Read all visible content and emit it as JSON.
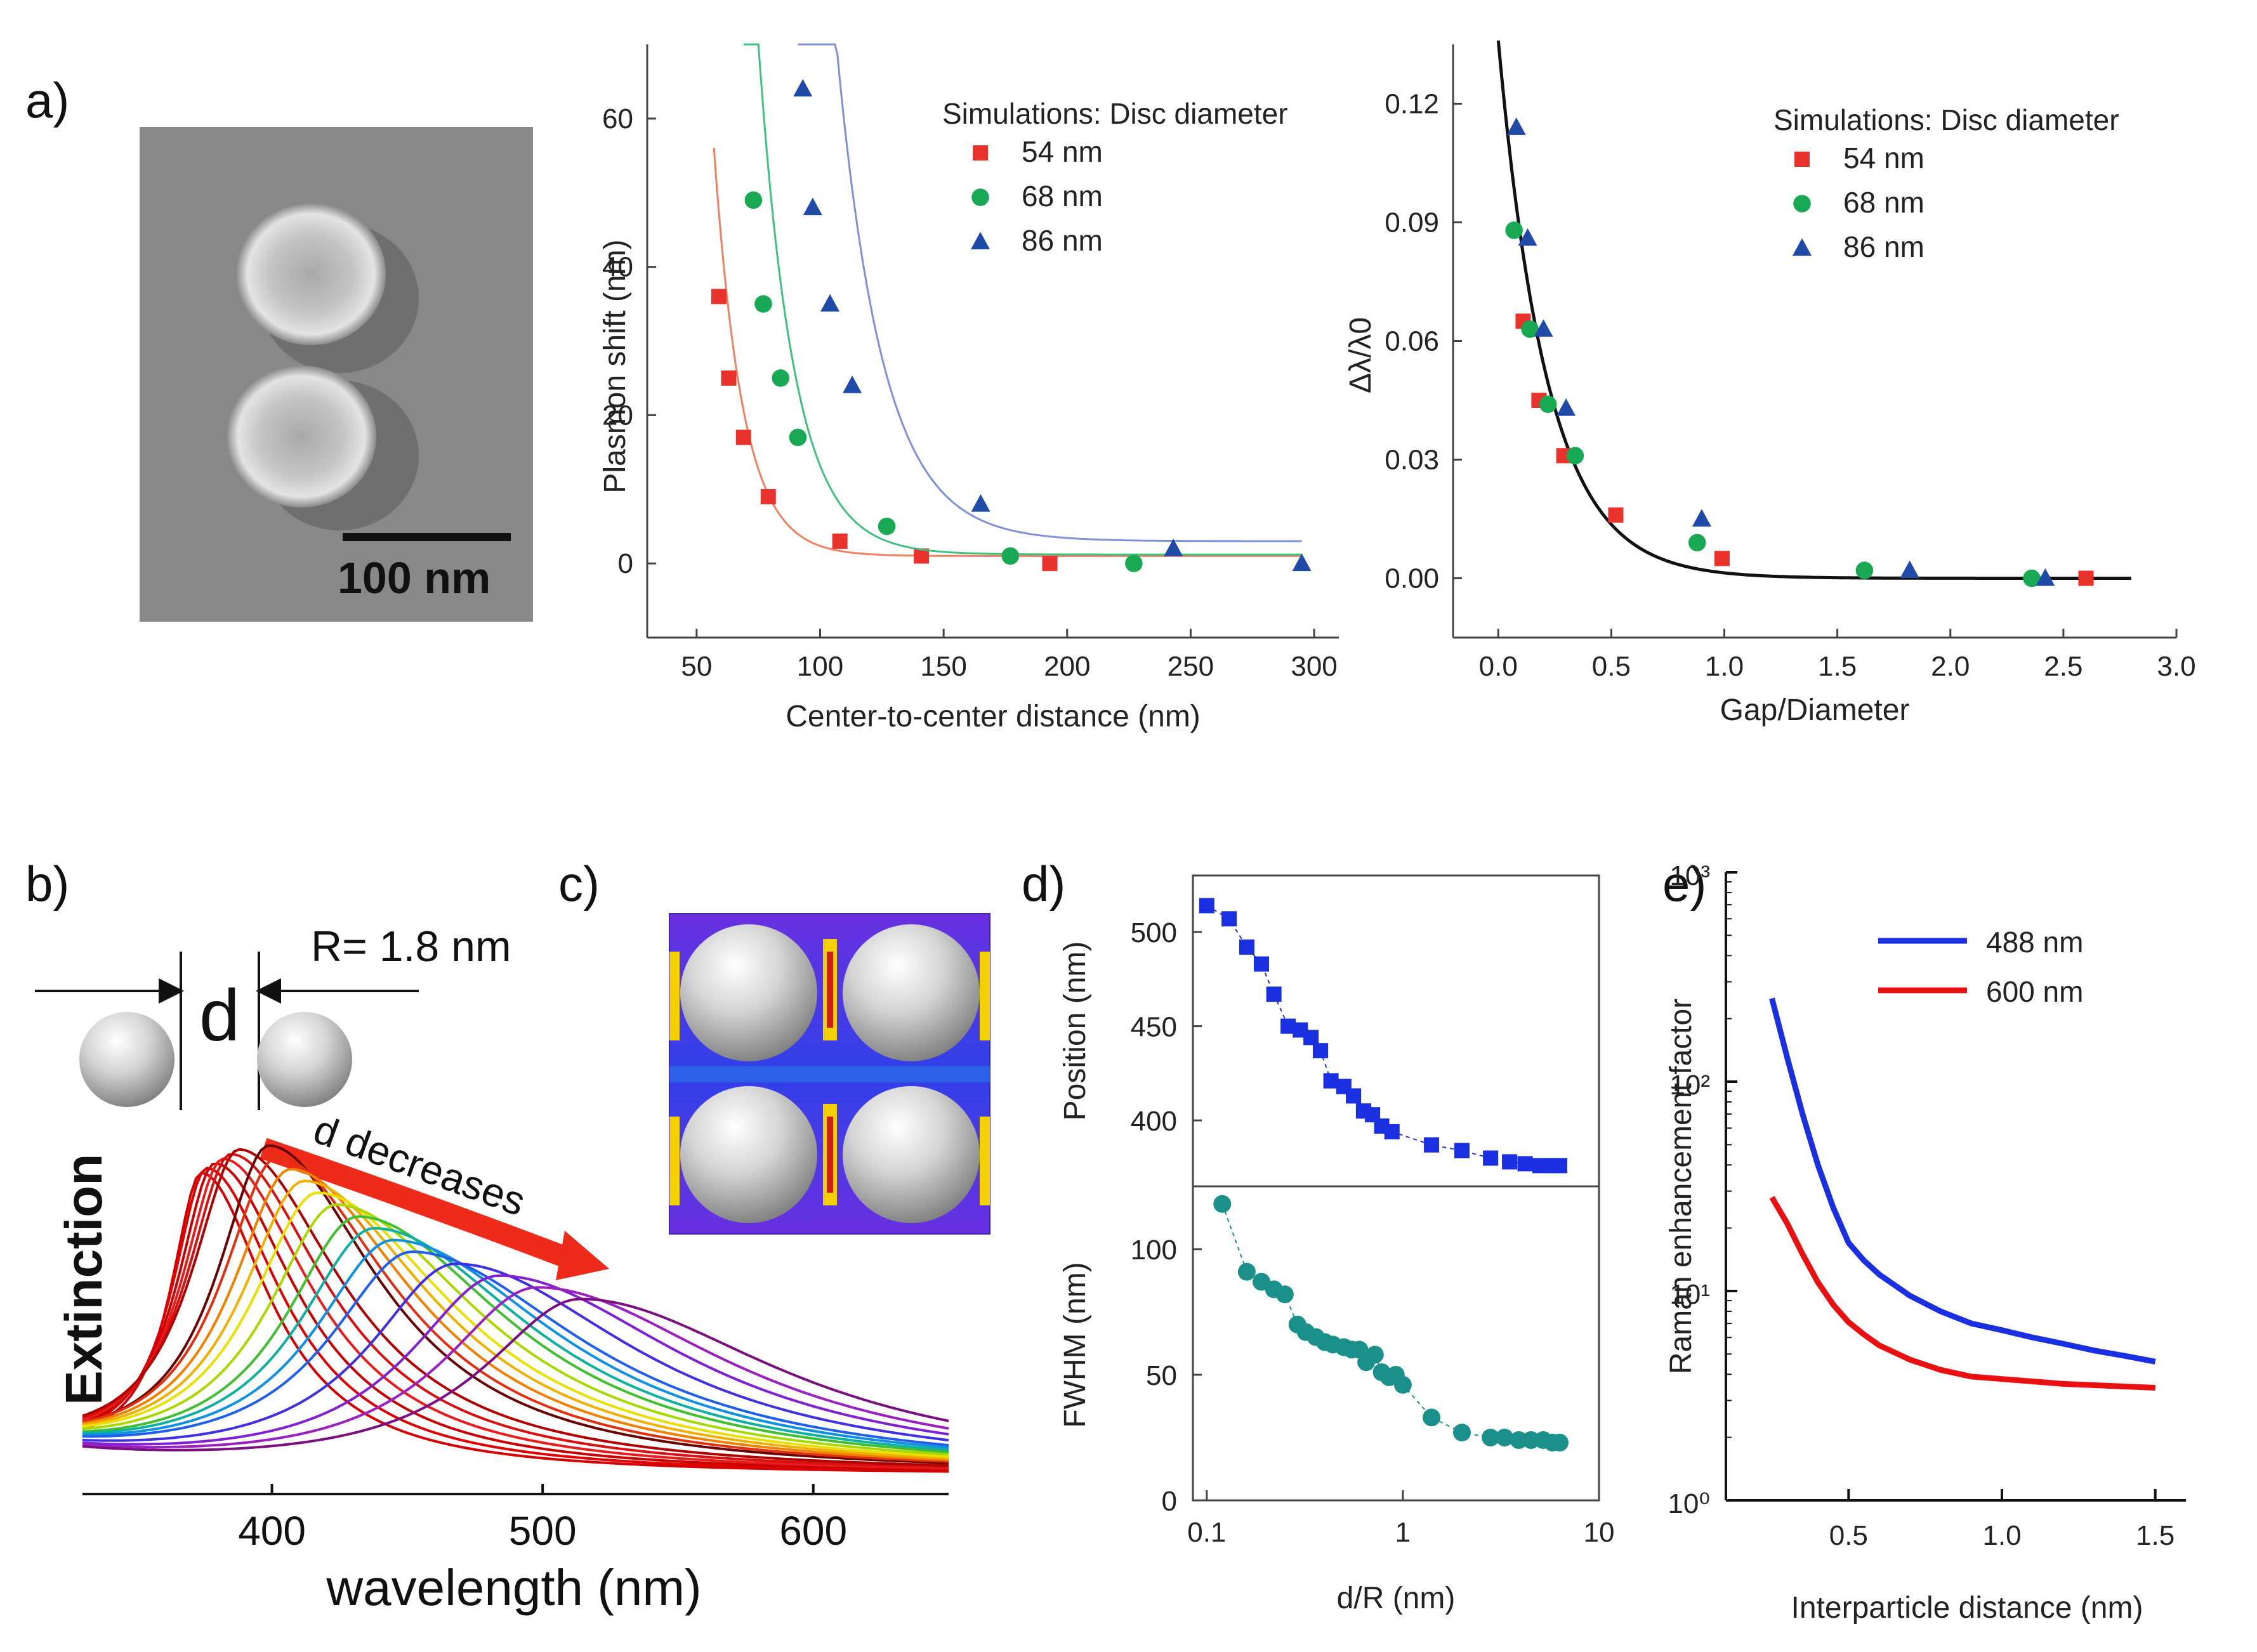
{
  "panels": {
    "a": "a)",
    "b": "b)",
    "c": "c)",
    "d": "d)",
    "e": "e)"
  },
  "colors": {
    "red": "#e8322b",
    "green": "#19a955",
    "blue": "#1f4aa8",
    "teal": "#1b8f8a",
    "royal": "#1a2fe0"
  },
  "sem": {
    "scale_label": "100 nm"
  },
  "panel_b": {
    "r_label": "R= 1.8 nm",
    "d_label": "d",
    "arrow_label": "d decreases"
  },
  "chart_data": [
    {
      "id": "a1",
      "type": "scatter",
      "title": "",
      "xlabel": "Center-to-center distance (nm)",
      "ylabel": "Plasmon shift (nm)",
      "xlim": [
        30,
        310
      ],
      "ylim": [
        -10,
        70
      ],
      "xticks": [
        50,
        100,
        150,
        200,
        250,
        300
      ],
      "yticks": [
        0,
        20,
        40,
        60
      ],
      "legend_title": "Simulations: Disc diameter",
      "series": [
        {
          "name": "54 nm",
          "marker": "square",
          "color": "#e8322b",
          "points": [
            [
              59,
              36
            ],
            [
              63,
              25
            ],
            [
              69,
              17
            ],
            [
              79,
              9
            ],
            [
              108,
              3
            ],
            [
              141,
              1
            ],
            [
              193,
              0
            ]
          ],
          "fit": {
            "a": 200,
            "x0": 58,
            "k": 0.086,
            "c": 1
          }
        },
        {
          "name": "68 nm",
          "marker": "circle",
          "color": "#19a955",
          "points": [
            [
              73,
              49
            ],
            [
              77,
              35
            ],
            [
              84,
              25
            ],
            [
              91,
              17
            ],
            [
              127,
              5
            ],
            [
              177,
              1
            ],
            [
              227,
              0
            ]
          ],
          "fit": {
            "a": 300,
            "x0": 70,
            "k": 0.07,
            "c": 1.2
          }
        },
        {
          "name": "86 nm",
          "marker": "triangle",
          "color": "#1f4aa8",
          "points": [
            [
              93,
              64
            ],
            [
              97,
              48
            ],
            [
              104,
              35
            ],
            [
              113,
              24
            ],
            [
              165,
              8
            ],
            [
              243,
              2
            ],
            [
              295,
              0
            ]
          ],
          "fit": {
            "a": 350,
            "x0": 92,
            "k": 0.054,
            "c": 3
          }
        }
      ]
    },
    {
      "id": "a2",
      "type": "scatter",
      "title": "",
      "xlabel": "Gap/Diameter",
      "ylabel": "Δλ/λ0",
      "xlim": [
        -0.2,
        3.0
      ],
      "ylim": [
        -0.015,
        0.135
      ],
      "xticks": [
        0.0,
        0.5,
        1.0,
        1.5,
        2.0,
        2.5,
        3.0
      ],
      "yticks": [
        0.0,
        0.03,
        0.06,
        0.09,
        0.12
      ],
      "legend_title": "Simulations: Disc diameter",
      "fit": {
        "a": 0.136,
        "k": 4.6
      },
      "series": [
        {
          "name": "54 nm",
          "marker": "square",
          "color": "#e8322b",
          "points": [
            [
              0.11,
              0.065
            ],
            [
              0.18,
              0.045
            ],
            [
              0.29,
              0.031
            ],
            [
              0.52,
              0.016
            ],
            [
              0.99,
              0.005
            ],
            [
              2.6,
              0.0
            ]
          ]
        },
        {
          "name": "68 nm",
          "marker": "circle",
          "color": "#19a955",
          "points": [
            [
              0.07,
              0.088
            ],
            [
              0.14,
              0.063
            ],
            [
              0.22,
              0.044
            ],
            [
              0.34,
              0.031
            ],
            [
              0.88,
              0.009
            ],
            [
              1.62,
              0.002
            ],
            [
              2.36,
              0.0
            ]
          ]
        },
        {
          "name": "86 nm",
          "marker": "triangle",
          "color": "#1f4aa8",
          "points": [
            [
              0.08,
              0.114
            ],
            [
              0.13,
              0.086
            ],
            [
              0.2,
              0.063
            ],
            [
              0.3,
              0.043
            ],
            [
              0.9,
              0.015
            ],
            [
              1.82,
              0.002
            ],
            [
              2.42,
              0.0
            ]
          ]
        }
      ]
    },
    {
      "id": "b",
      "type": "line",
      "title": "",
      "xlabel": "wavelength (nm)",
      "ylabel": "Extinction",
      "xlim": [
        330,
        650
      ],
      "xticks": [
        400,
        500,
        600
      ],
      "series_peaks": [
        {
          "peak": 374,
          "color": "#d40000"
        },
        {
          "peak": 376,
          "color": "#e00000"
        },
        {
          "peak": 379,
          "color": "#c80000"
        },
        {
          "peak": 382,
          "color": "#e81c1c"
        },
        {
          "peak": 385,
          "color": "#d81010"
        },
        {
          "peak": 388,
          "color": "#b00000"
        },
        {
          "peak": 399,
          "color": "#6a0000"
        },
        {
          "peak": 402,
          "color": "#e03010"
        },
        {
          "peak": 407,
          "color": "#f08000"
        },
        {
          "peak": 412,
          "color": "#f0b000"
        },
        {
          "peak": 417,
          "color": "#e8e000"
        },
        {
          "peak": 424,
          "color": "#a8d800"
        },
        {
          "peak": 432,
          "color": "#40c030"
        },
        {
          "peak": 438,
          "color": "#10b0a0"
        },
        {
          "peak": 445,
          "color": "#1090e0"
        },
        {
          "peak": 452,
          "color": "#2060e8"
        },
        {
          "peak": 468,
          "color": "#4030e0"
        },
        {
          "peak": 484,
          "color": "#8020d0"
        },
        {
          "peak": 498,
          "color": "#9a20c0"
        },
        {
          "peak": 514,
          "color": "#7a1080"
        }
      ]
    },
    {
      "id": "d_top",
      "type": "line",
      "xlabel": "d/R (nm)",
      "ylabel": "Position (nm)",
      "xscale": "log",
      "xlim": [
        0.085,
        10
      ],
      "ylim": [
        365,
        530
      ],
      "yticks": [
        400,
        450,
        500
      ],
      "x": [
        0.1,
        0.13,
        0.16,
        0.19,
        0.22,
        0.26,
        0.3,
        0.34,
        0.38,
        0.43,
        0.5,
        0.56,
        0.63,
        0.7,
        0.78,
        0.88,
        1.4,
        2.0,
        2.8,
        3.5,
        4.2,
        5.0,
        5.8,
        6.3
      ],
      "values": [
        514,
        507,
        492,
        483,
        467,
        450,
        448,
        444,
        437,
        421,
        418,
        413,
        405,
        403,
        397,
        394,
        387,
        384,
        380,
        378,
        377,
        376,
        376,
        376
      ]
    },
    {
      "id": "d_bottom",
      "type": "line",
      "xlabel": "d/R (nm)",
      "ylabel": "FWHM (nm)",
      "xscale": "log",
      "xlim": [
        0.085,
        10
      ],
      "ylim": [
        0,
        125
      ],
      "yticks": [
        0,
        50,
        100
      ],
      "xticks": [
        0.1,
        1,
        10
      ],
      "x": [
        0.12,
        0.16,
        0.19,
        0.22,
        0.25,
        0.29,
        0.32,
        0.36,
        0.4,
        0.44,
        0.5,
        0.55,
        0.6,
        0.65,
        0.72,
        0.78,
        0.85,
        0.92,
        1.0,
        1.4,
        2.0,
        2.8,
        3.3,
        3.9,
        4.5,
        5.2,
        5.8,
        6.3
      ],
      "values": [
        118,
        91,
        87,
        84,
        82,
        70,
        67,
        65,
        63,
        62,
        61,
        60,
        60,
        55,
        58,
        51,
        49,
        50,
        46,
        33,
        27,
        25,
        25,
        24,
        24,
        24,
        23,
        23
      ]
    },
    {
      "id": "e",
      "type": "line",
      "xlabel": "Interparticle distance (nm)",
      "ylabel": "Raman enhancement factor",
      "yscale": "log",
      "xlim": [
        0.1,
        1.6
      ],
      "ylim": [
        1,
        1000
      ],
      "xticks": [
        0.5,
        1.0,
        1.5
      ],
      "ytick_labels": [
        "10⁰",
        "10¹",
        "10²",
        "10³"
      ],
      "series": [
        {
          "name": "488 nm",
          "color": "#1a2fe0",
          "x": [
            0.25,
            0.3,
            0.35,
            0.4,
            0.45,
            0.5,
            0.55,
            0.6,
            0.7,
            0.8,
            0.9,
            1.0,
            1.1,
            1.2,
            1.3,
            1.4,
            1.5
          ],
          "values": [
            250,
            130,
            70,
            40,
            25,
            17,
            14,
            12,
            9.5,
            8,
            7,
            6.5,
            6,
            5.6,
            5.2,
            4.9,
            4.6
          ]
        },
        {
          "name": "600 nm",
          "color": "#e81010",
          "x": [
            0.25,
            0.3,
            0.35,
            0.4,
            0.45,
            0.5,
            0.55,
            0.6,
            0.7,
            0.8,
            0.9,
            1.0,
            1.1,
            1.2,
            1.3,
            1.4,
            1.5
          ],
          "values": [
            28,
            21,
            15,
            11,
            8.6,
            7.1,
            6.2,
            5.5,
            4.7,
            4.2,
            3.9,
            3.8,
            3.7,
            3.6,
            3.55,
            3.5,
            3.45
          ]
        }
      ]
    }
  ]
}
